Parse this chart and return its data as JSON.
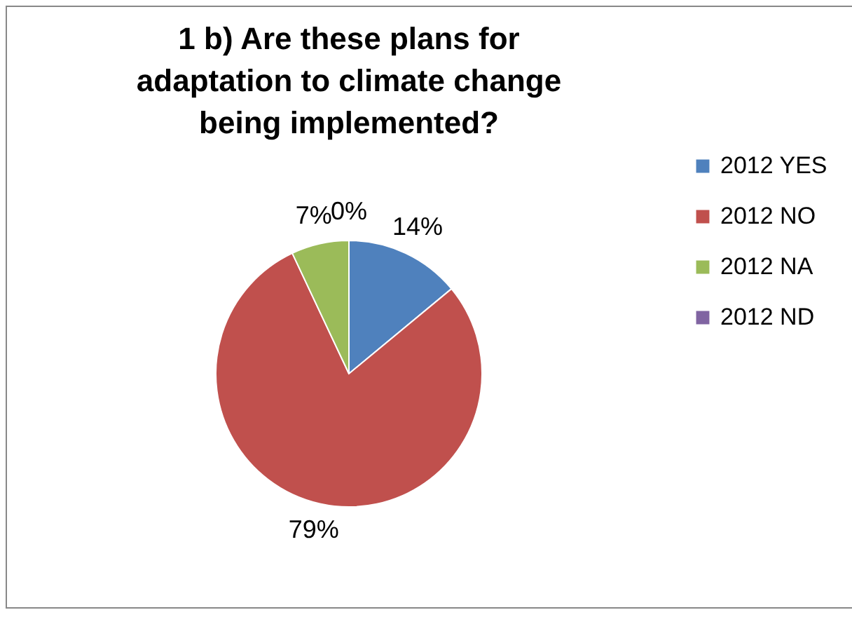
{
  "chart_data": {
    "type": "pie",
    "title": "1 b) Are these plans for adaptation to climate change being implemented?",
    "categories": [
      "2012 YES",
      "2012 NO",
      "2012 NA",
      "2012 ND"
    ],
    "values": [
      14,
      79,
      7,
      0
    ],
    "colors": [
      "#4f81bd",
      "#c0504d",
      "#9bbb59",
      "#8064a2"
    ],
    "value_labels": [
      "14%",
      "79%",
      "7%",
      "0%"
    ],
    "legend": "right"
  }
}
